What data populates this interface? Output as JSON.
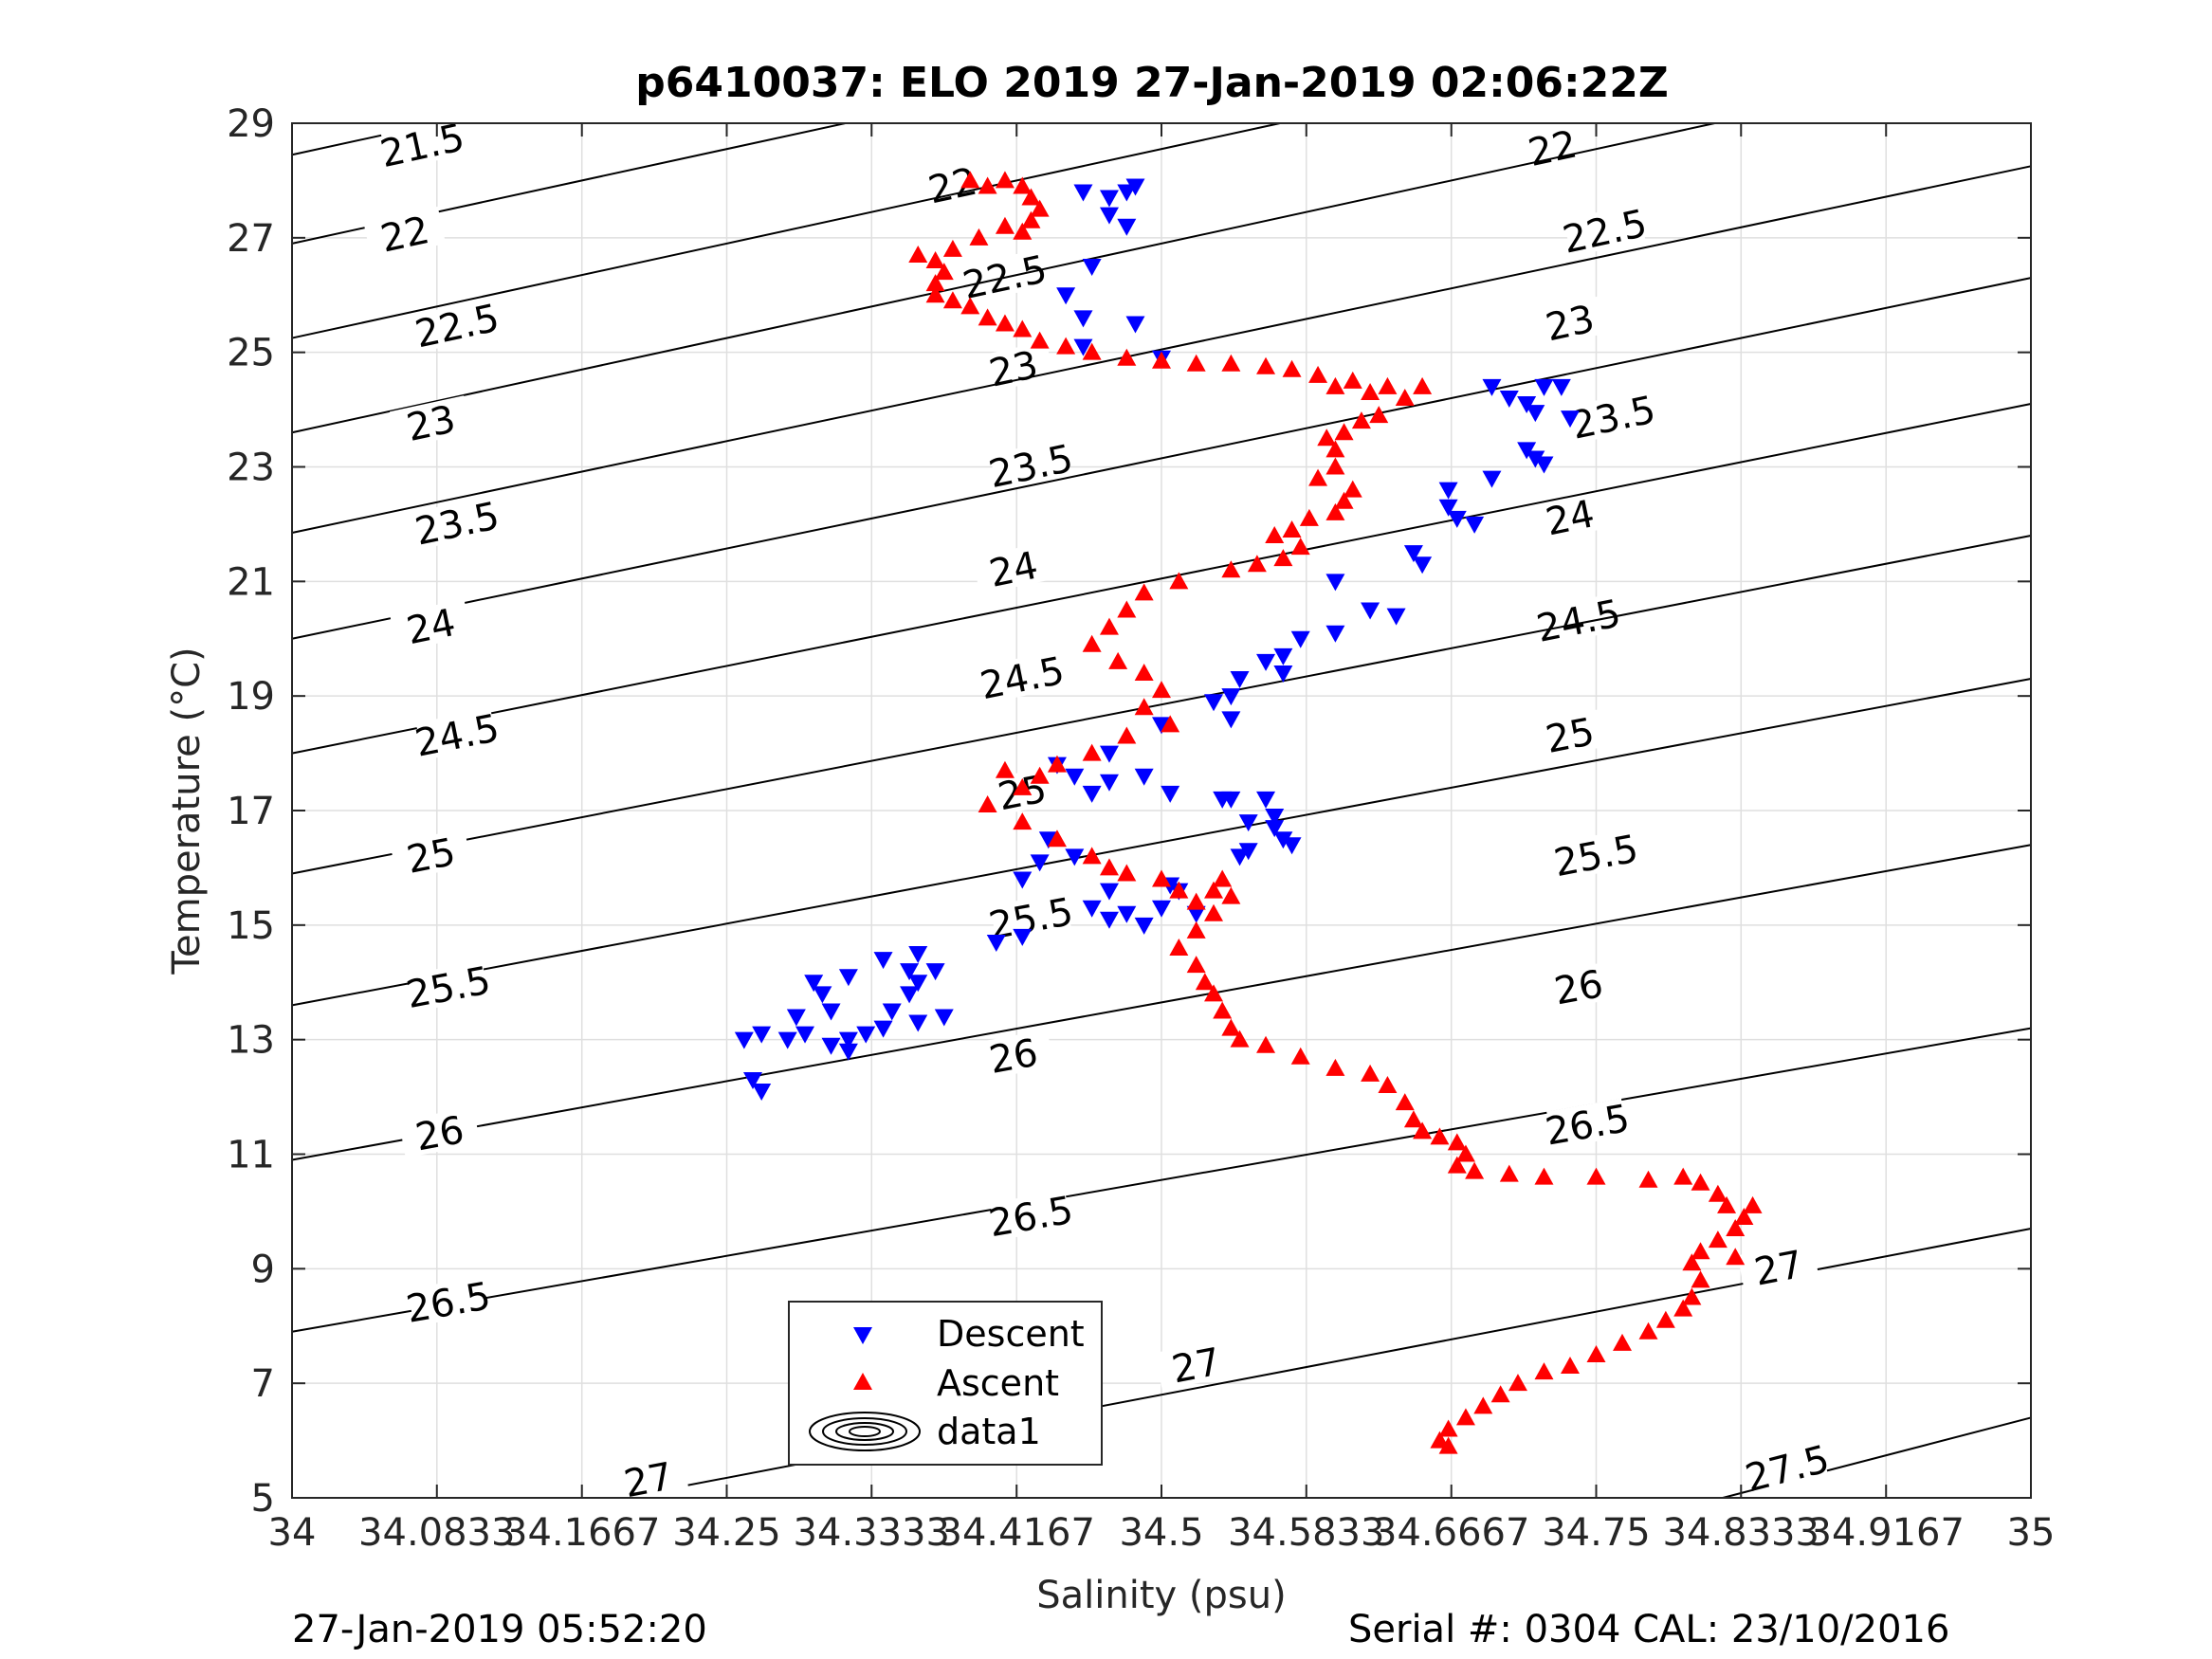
{
  "chart_data": {
    "type": "scatter",
    "title": "p6410037: ELO 2019 27-Jan-2019 02:06:22Z",
    "xlabel": "Salinity (psu)",
    "ylabel": "Temperature (°C)",
    "xlim": [
      34,
      35
    ],
    "ylim": [
      5,
      29
    ],
    "xticks": [
      34,
      34.0833,
      34.1667,
      34.25,
      34.3333,
      34.4167,
      34.5,
      34.5833,
      34.6667,
      34.75,
      34.8333,
      34.9167,
      35
    ],
    "xtick_labels": [
      "34",
      "34.0833",
      "34.1667",
      "34.25",
      "34.3333",
      "34.4167",
      "34.5",
      "34.5833",
      "34.6667",
      "34.75",
      "34.8333",
      "34.9167",
      "35"
    ],
    "yticks": [
      5,
      7,
      9,
      11,
      13,
      15,
      17,
      19,
      21,
      23,
      25,
      27,
      29
    ],
    "ytick_labels": [
      "5",
      "7",
      "9",
      "11",
      "13",
      "15",
      "17",
      "19",
      "21",
      "23",
      "25",
      "27",
      "29"
    ],
    "grid": true,
    "legend_position": "bottom-center",
    "series": [
      {
        "name": "Descent",
        "marker": "triangle-down",
        "color": "#0000ff",
        "points": [
          [
            34.48,
            27.8
          ],
          [
            34.485,
            27.9
          ],
          [
            34.47,
            27.7
          ],
          [
            34.47,
            27.4
          ],
          [
            34.48,
            27.2
          ],
          [
            34.455,
            27.8
          ],
          [
            34.46,
            26.5
          ],
          [
            34.445,
            26.0
          ],
          [
            34.455,
            25.6
          ],
          [
            34.485,
            25.5
          ],
          [
            34.455,
            25.1
          ],
          [
            34.5,
            24.9
          ],
          [
            34.69,
            24.4
          ],
          [
            34.7,
            24.2
          ],
          [
            34.72,
            24.4
          ],
          [
            34.71,
            24.1
          ],
          [
            34.73,
            24.4
          ],
          [
            34.715,
            23.95
          ],
          [
            34.735,
            23.85
          ],
          [
            34.71,
            23.3
          ],
          [
            34.715,
            23.15
          ],
          [
            34.72,
            23.05
          ],
          [
            34.69,
            22.8
          ],
          [
            34.665,
            22.6
          ],
          [
            34.665,
            22.3
          ],
          [
            34.67,
            22.1
          ],
          [
            34.68,
            22.0
          ],
          [
            34.645,
            21.5
          ],
          [
            34.65,
            21.3
          ],
          [
            34.6,
            21.0
          ],
          [
            34.62,
            20.5
          ],
          [
            34.635,
            20.4
          ],
          [
            34.6,
            20.1
          ],
          [
            34.58,
            20.0
          ],
          [
            34.57,
            19.7
          ],
          [
            34.57,
            19.4
          ],
          [
            34.56,
            19.6
          ],
          [
            34.545,
            19.3
          ],
          [
            34.54,
            19.0
          ],
          [
            34.54,
            18.6
          ],
          [
            34.53,
            18.9
          ],
          [
            34.5,
            18.5
          ],
          [
            34.47,
            18.0
          ],
          [
            34.44,
            17.8
          ],
          [
            34.45,
            17.6
          ],
          [
            34.47,
            17.5
          ],
          [
            34.46,
            17.3
          ],
          [
            34.49,
            17.6
          ],
          [
            34.505,
            17.3
          ],
          [
            34.535,
            17.2
          ],
          [
            34.54,
            17.2
          ],
          [
            34.56,
            17.2
          ],
          [
            34.565,
            16.9
          ],
          [
            34.565,
            16.7
          ],
          [
            34.55,
            16.8
          ],
          [
            34.57,
            16.5
          ],
          [
            34.575,
            16.4
          ],
          [
            34.55,
            16.3
          ],
          [
            34.545,
            16.2
          ],
          [
            34.45,
            16.2
          ],
          [
            34.435,
            16.5
          ],
          [
            34.43,
            16.1
          ],
          [
            34.42,
            15.8
          ],
          [
            34.46,
            15.3
          ],
          [
            34.47,
            15.1
          ],
          [
            34.48,
            15.2
          ],
          [
            34.49,
            15.0
          ],
          [
            34.5,
            15.3
          ],
          [
            34.52,
            15.2
          ],
          [
            34.505,
            15.7
          ],
          [
            34.51,
            15.6
          ],
          [
            34.47,
            15.6
          ],
          [
            34.42,
            14.8
          ],
          [
            34.405,
            14.7
          ],
          [
            34.36,
            14.5
          ],
          [
            34.37,
            14.2
          ],
          [
            34.36,
            14.0
          ],
          [
            34.355,
            13.8
          ],
          [
            34.345,
            13.5
          ],
          [
            34.36,
            13.3
          ],
          [
            34.375,
            13.4
          ],
          [
            34.34,
            13.2
          ],
          [
            34.33,
            13.1
          ],
          [
            34.32,
            13.0
          ],
          [
            34.31,
            12.9
          ],
          [
            34.32,
            12.8
          ],
          [
            34.31,
            13.5
          ],
          [
            34.305,
            13.8
          ],
          [
            34.3,
            14.0
          ],
          [
            34.29,
            13.4
          ],
          [
            34.295,
            13.1
          ],
          [
            34.285,
            13.0
          ],
          [
            34.27,
            13.1
          ],
          [
            34.26,
            13.0
          ],
          [
            34.265,
            12.3
          ],
          [
            34.27,
            12.1
          ],
          [
            34.32,
            14.1
          ],
          [
            34.34,
            14.4
          ],
          [
            34.355,
            14.2
          ]
        ]
      },
      {
        "name": "Ascent",
        "marker": "triangle-up",
        "color": "#ff0000",
        "points": [
          [
            34.39,
            28.0
          ],
          [
            34.4,
            27.9
          ],
          [
            34.41,
            28.0
          ],
          [
            34.42,
            27.9
          ],
          [
            34.425,
            27.7
          ],
          [
            34.43,
            27.5
          ],
          [
            34.425,
            27.3
          ],
          [
            34.42,
            27.1
          ],
          [
            34.41,
            27.2
          ],
          [
            34.395,
            27.0
          ],
          [
            34.38,
            26.8
          ],
          [
            34.37,
            26.6
          ],
          [
            34.36,
            26.7
          ],
          [
            34.375,
            26.4
          ],
          [
            34.37,
            26.2
          ],
          [
            34.37,
            26.0
          ],
          [
            34.38,
            25.9
          ],
          [
            34.39,
            25.8
          ],
          [
            34.4,
            25.6
          ],
          [
            34.41,
            25.5
          ],
          [
            34.42,
            25.4
          ],
          [
            34.43,
            25.2
          ],
          [
            34.445,
            25.1
          ],
          [
            34.46,
            25.0
          ],
          [
            34.48,
            24.9
          ],
          [
            34.5,
            24.85
          ],
          [
            34.52,
            24.8
          ],
          [
            34.54,
            24.8
          ],
          [
            34.56,
            24.75
          ],
          [
            34.575,
            24.7
          ],
          [
            34.59,
            24.6
          ],
          [
            34.6,
            24.4
          ],
          [
            34.61,
            24.5
          ],
          [
            34.62,
            24.3
          ],
          [
            34.63,
            24.4
          ],
          [
            34.65,
            24.4
          ],
          [
            34.64,
            24.2
          ],
          [
            34.625,
            23.9
          ],
          [
            34.615,
            23.8
          ],
          [
            34.605,
            23.6
          ],
          [
            34.595,
            23.5
          ],
          [
            34.6,
            23.3
          ],
          [
            34.6,
            23.0
          ],
          [
            34.59,
            22.8
          ],
          [
            34.61,
            22.6
          ],
          [
            34.605,
            22.4
          ],
          [
            34.6,
            22.2
          ],
          [
            34.585,
            22.1
          ],
          [
            34.575,
            21.9
          ],
          [
            34.565,
            21.8
          ],
          [
            34.58,
            21.6
          ],
          [
            34.57,
            21.4
          ],
          [
            34.555,
            21.3
          ],
          [
            34.54,
            21.2
          ],
          [
            34.51,
            21.0
          ],
          [
            34.49,
            20.8
          ],
          [
            34.48,
            20.5
          ],
          [
            34.47,
            20.2
          ],
          [
            34.46,
            19.9
          ],
          [
            34.475,
            19.6
          ],
          [
            34.49,
            19.4
          ],
          [
            34.5,
            19.1
          ],
          [
            34.49,
            18.8
          ],
          [
            34.505,
            18.5
          ],
          [
            34.48,
            18.3
          ],
          [
            34.46,
            18.0
          ],
          [
            34.44,
            17.8
          ],
          [
            34.43,
            17.6
          ],
          [
            34.42,
            17.4
          ],
          [
            34.41,
            17.7
          ],
          [
            34.4,
            17.1
          ],
          [
            34.42,
            16.8
          ],
          [
            34.44,
            16.5
          ],
          [
            34.46,
            16.2
          ],
          [
            34.47,
            16.0
          ],
          [
            34.48,
            15.9
          ],
          [
            34.5,
            15.8
          ],
          [
            34.51,
            15.6
          ],
          [
            34.52,
            15.4
          ],
          [
            34.53,
            15.6
          ],
          [
            34.535,
            15.8
          ],
          [
            34.54,
            15.5
          ],
          [
            34.53,
            15.2
          ],
          [
            34.52,
            14.9
          ],
          [
            34.51,
            14.6
          ],
          [
            34.52,
            14.3
          ],
          [
            34.525,
            14.0
          ],
          [
            34.53,
            13.8
          ],
          [
            34.535,
            13.5
          ],
          [
            34.54,
            13.2
          ],
          [
            34.545,
            13.0
          ],
          [
            34.56,
            12.9
          ],
          [
            34.58,
            12.7
          ],
          [
            34.6,
            12.5
          ],
          [
            34.62,
            12.4
          ],
          [
            34.63,
            12.2
          ],
          [
            34.64,
            11.9
          ],
          [
            34.645,
            11.6
          ],
          [
            34.65,
            11.4
          ],
          [
            34.66,
            11.3
          ],
          [
            34.67,
            11.2
          ],
          [
            34.675,
            11.0
          ],
          [
            34.67,
            10.8
          ],
          [
            34.68,
            10.7
          ],
          [
            34.7,
            10.65
          ],
          [
            34.72,
            10.6
          ],
          [
            34.75,
            10.6
          ],
          [
            34.78,
            10.55
          ],
          [
            34.8,
            10.6
          ],
          [
            34.81,
            10.5
          ],
          [
            34.82,
            10.3
          ],
          [
            34.825,
            10.1
          ],
          [
            34.84,
            10.1
          ],
          [
            34.835,
            9.9
          ],
          [
            34.83,
            9.7
          ],
          [
            34.82,
            9.5
          ],
          [
            34.81,
            9.3
          ],
          [
            34.805,
            9.1
          ],
          [
            34.81,
            8.8
          ],
          [
            34.805,
            8.5
          ],
          [
            34.8,
            8.3
          ],
          [
            34.79,
            8.1
          ],
          [
            34.78,
            7.9
          ],
          [
            34.765,
            7.7
          ],
          [
            34.75,
            7.5
          ],
          [
            34.735,
            7.3
          ],
          [
            34.72,
            7.2
          ],
          [
            34.705,
            7.0
          ],
          [
            34.695,
            6.8
          ],
          [
            34.685,
            6.6
          ],
          [
            34.675,
            6.4
          ],
          [
            34.665,
            6.2
          ],
          [
            34.66,
            6.0
          ],
          [
            34.665,
            5.9
          ],
          [
            34.83,
            9.2
          ]
        ]
      }
    ],
    "contours": {
      "label_levels": [
        "21.5",
        "22",
        "22.5",
        "23",
        "23.5",
        "24",
        "24.5",
        "25",
        "25.5",
        "26",
        "26.5",
        "27",
        "27.5"
      ],
      "note": "sigma-theta isopycnals"
    },
    "legend": {
      "entries": [
        "Descent",
        "Ascent",
        "data1"
      ]
    }
  },
  "footer": {
    "left": "27-Jan-2019 05:52:20",
    "right": "Serial #: 0304  CAL: 23/10/2016"
  }
}
